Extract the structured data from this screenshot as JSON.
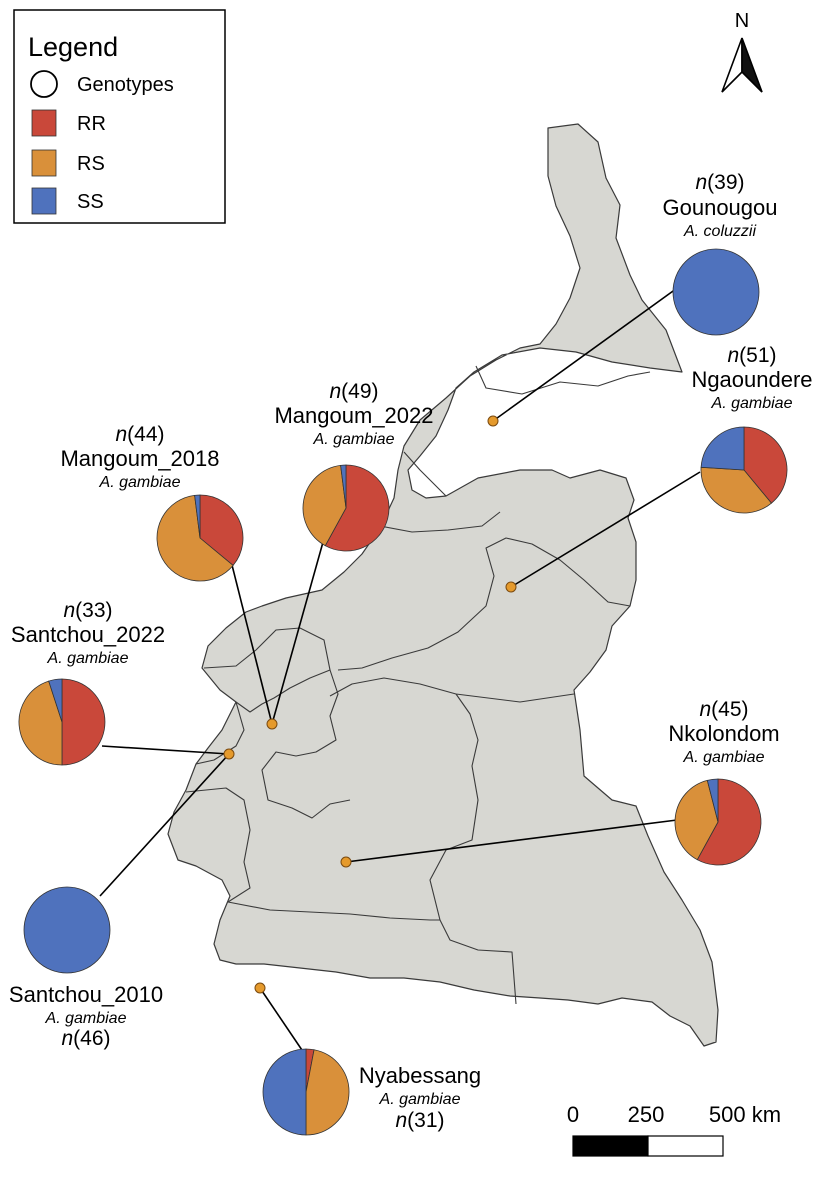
{
  "legend": {
    "title": "Legend",
    "items": [
      {
        "key": "genotypes",
        "label": "Genotypes",
        "shape": "circle-outline"
      },
      {
        "key": "RR",
        "label": "RR",
        "color": "#c9483a"
      },
      {
        "key": "RS",
        "label": "RS",
        "color": "#d9903a"
      },
      {
        "key": "SS",
        "label": "SS",
        "color": "#4f72bd"
      }
    ]
  },
  "north_arrow": {
    "label": "N",
    "icon": "north-arrow-icon"
  },
  "scale_bar": {
    "labels": [
      "0",
      "250",
      "500 km"
    ]
  },
  "colors": {
    "RR": "#c9483a",
    "RS": "#d9903a",
    "SS": "#4f72bd",
    "land": "#d7d7d2",
    "site_dot": "#e59a2c"
  },
  "sites": [
    {
      "id": "gounougou",
      "name": "Gounougou",
      "species": "A. coluzzii",
      "n": "39",
      "genotype_pct": {
        "RR": 0,
        "RS": 0,
        "SS": 100
      }
    },
    {
      "id": "ngaoundere",
      "name": "Ngaoundere",
      "species": "A. gambiae",
      "n": "51",
      "genotype_pct": {
        "RR": 39,
        "RS": 37,
        "SS": 24
      }
    },
    {
      "id": "mangoum_2022",
      "name": "Mangoum_2022",
      "species": "A. gambiae",
      "n": "49",
      "genotype_pct": {
        "RR": 58,
        "RS": 40,
        "SS": 2
      }
    },
    {
      "id": "mangoum_2018",
      "name": "Mangoum_2018",
      "species": "A. gambiae",
      "n": "44",
      "genotype_pct": {
        "RR": 36,
        "RS": 62,
        "SS": 2
      }
    },
    {
      "id": "santchou_2022",
      "name": "Santchou_2022",
      "species": "A. gambiae",
      "n": "33",
      "genotype_pct": {
        "RR": 50,
        "RS": 45,
        "SS": 5
      }
    },
    {
      "id": "nkolondom",
      "name": "Nkolondom",
      "species": "A. gambiae",
      "n": "45",
      "genotype_pct": {
        "RR": 58,
        "RS": 38,
        "SS": 4
      }
    },
    {
      "id": "santchou_2010",
      "name": "Santchou_2010",
      "species": "A. gambiae",
      "n": "46",
      "genotype_pct": {
        "RR": 0,
        "RS": 0,
        "SS": 100
      }
    },
    {
      "id": "nyabessang",
      "name": "Nyabessang",
      "species": "A. gambiae",
      "n": "31",
      "genotype_pct": {
        "RR": 3,
        "RS": 47,
        "SS": 50
      }
    }
  ]
}
